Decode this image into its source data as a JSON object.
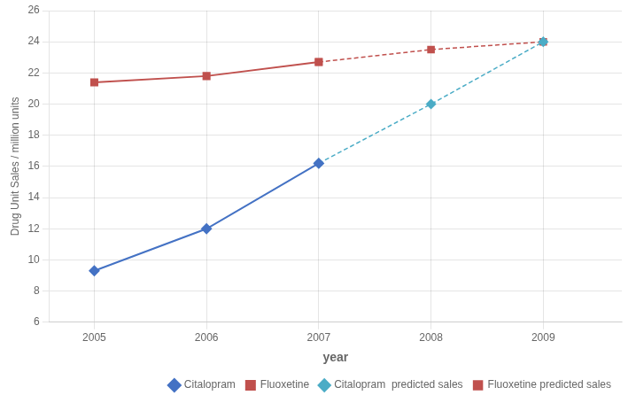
{
  "chart_data": {
    "type": "line",
    "xlabel": "year",
    "ylabel": "Drug Unit Sales / million units",
    "x": [
      2005,
      2006,
      2007,
      2008,
      2009
    ],
    "series": [
      {
        "name": "Citalopram",
        "color": "#4472C4",
        "marker": "diamond",
        "line_style": "solid",
        "values": [
          9.3,
          12.0,
          16.2,
          null,
          null
        ]
      },
      {
        "name": "Fluoxetine",
        "color": "#C0504D",
        "marker": "square",
        "line_style": "solid",
        "values": [
          21.4,
          21.8,
          22.7,
          null,
          null
        ]
      },
      {
        "name": "Citalopram  predicted sales",
        "color": "#4BACC6",
        "marker": "diamond",
        "line_style": "dashed",
        "values": [
          null,
          null,
          16.2,
          20.0,
          24.0
        ]
      },
      {
        "name": "Fluoxetine predicted sales",
        "color": "#C0504D",
        "marker": "square",
        "line_style": "dashed",
        "values": [
          null,
          null,
          22.7,
          23.5,
          24.0
        ]
      }
    ],
    "xlim": [
      2004.6,
      2009.7
    ],
    "xticks": [
      2005,
      2006,
      2007,
      2008,
      2009
    ],
    "ylim": [
      6,
      26
    ],
    "yticks": [
      6,
      8,
      10,
      12,
      14,
      16,
      18,
      20,
      22,
      24,
      26
    ],
    "grid": true,
    "legend": "lower right"
  }
}
